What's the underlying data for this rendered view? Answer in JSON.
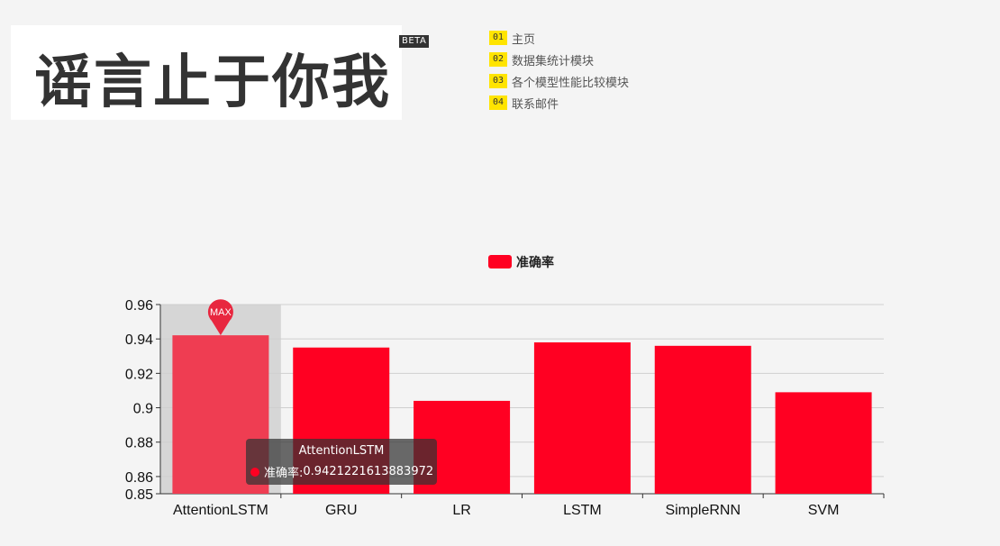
{
  "header": {
    "logo_text": "谣言止于你我",
    "beta": "BETA"
  },
  "nav": {
    "items": [
      {
        "num": "01",
        "label": "主页"
      },
      {
        "num": "02",
        "label": "数据集统计模块"
      },
      {
        "num": "03",
        "label": "各个模型性能比较模块"
      },
      {
        "num": "04",
        "label": "联系邮件"
      }
    ]
  },
  "colors": {
    "bar": "#ff0022",
    "bar_highlight": "#ef3d52",
    "hover_band": "#d6d6d6",
    "marker": "#e8273f",
    "accent": "#ffe400"
  },
  "chart_data": {
    "type": "bar",
    "categories": [
      "AttentionLSTM",
      "GRU",
      "LR",
      "LSTM",
      "SimpleRNN",
      "SVM"
    ],
    "series": [
      {
        "name": "准确率",
        "values": [
          0.9421221613883972,
          0.935,
          0.904,
          0.938,
          0.936,
          0.909
        ]
      }
    ],
    "ylim": [
      0.85,
      0.96
    ],
    "yticks": [
      "0.96",
      "0.94",
      "0.92",
      "0.9",
      "0.88",
      "0.86",
      "0.85"
    ],
    "ytick_values": [
      0.96,
      0.94,
      0.92,
      0.9,
      0.88,
      0.86,
      0.85
    ],
    "legend": "top-center",
    "grid": true,
    "max_marker_label": "MAX",
    "highlighted_index": 0
  },
  "tooltip": {
    "title": "AttentionLSTM",
    "series_name": "准确率: ",
    "value": "0.9421221613883972"
  }
}
